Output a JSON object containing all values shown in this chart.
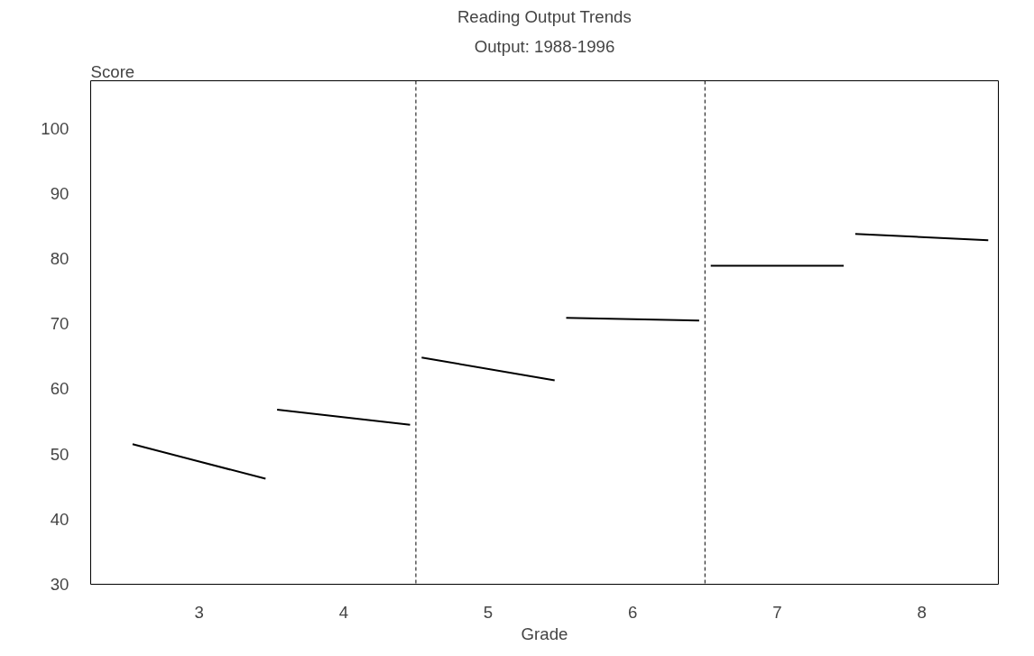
{
  "chart_data": {
    "type": "line",
    "title": "Reading Output Trends",
    "subtitle": "Output: 1988-1996",
    "xlabel": "Grade",
    "ylabel": "Score",
    "series": [
      {
        "color": "#000000",
        "x": [
          2.54,
          3.46
        ],
        "values": [
          51.5,
          46.2
        ]
      },
      {
        "color": "#000000",
        "x": [
          3.54,
          4.46
        ],
        "values": [
          56.8,
          54.5
        ]
      },
      {
        "color": "#000000",
        "x": [
          4.54,
          5.46
        ],
        "values": [
          64.8,
          61.3
        ]
      },
      {
        "color": "#000000",
        "x": [
          5.54,
          6.46
        ],
        "values": [
          70.9,
          70.5
        ]
      },
      {
        "color": "#000000",
        "x": [
          6.54,
          7.46
        ],
        "values": [
          78.9,
          78.9
        ]
      },
      {
        "color": "#000000",
        "x": [
          7.54,
          8.46
        ],
        "values": [
          83.8,
          82.8
        ]
      }
    ],
    "xlim": [
      2.25,
      8.53
    ],
    "xticks": [
      3,
      4,
      5,
      6,
      7,
      8
    ],
    "ylim": [
      30,
      107.3
    ],
    "yticks": [
      30,
      40,
      50,
      60,
      70,
      80,
      90,
      100
    ],
    "ref_lines": [
      {
        "axis": "x",
        "value": 4.5,
        "color": "#000000",
        "line_style": "dashed"
      },
      {
        "axis": "x",
        "value": 6.5,
        "color": "#000000",
        "line_style": "dashed"
      }
    ],
    "grid": false,
    "marker": "none",
    "line_style": "solid"
  }
}
